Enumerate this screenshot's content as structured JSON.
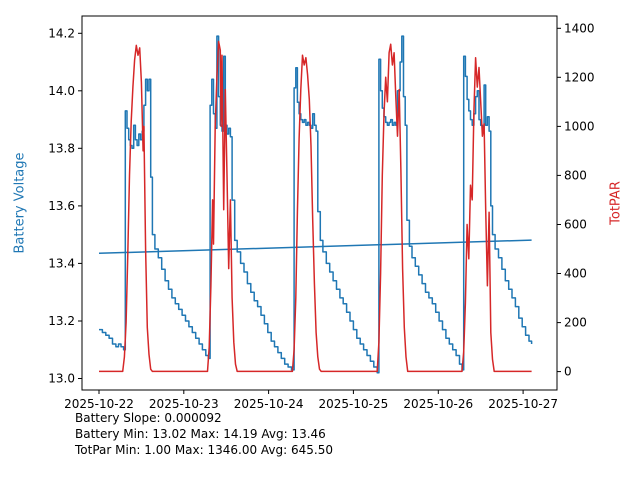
{
  "chart_data": {
    "type": "line",
    "title": "",
    "x_axis": {
      "label": "",
      "range": [
        -0.2,
        5.4
      ],
      "ticks": [
        0,
        1,
        2,
        3,
        4,
        5
      ],
      "tick_labels": [
        "2025-10-22",
        "2025-10-23",
        "2025-10-24",
        "2025-10-25",
        "2025-10-26",
        "2025-10-27"
      ]
    },
    "y_left": {
      "label": "Battery Voltage",
      "color": "#1f77b4",
      "range": [
        12.96,
        14.26
      ],
      "ticks": [
        13.0,
        13.2,
        13.4,
        13.6,
        13.8,
        14.0,
        14.2
      ],
      "tick_labels": [
        "13.0",
        "13.2",
        "13.4",
        "13.6",
        "13.8",
        "14.0",
        "14.2"
      ]
    },
    "y_right": {
      "label": "TotPAR",
      "color": "#d62728",
      "range": [
        -75,
        1450
      ],
      "ticks": [
        0,
        200,
        400,
        600,
        800,
        1000,
        1200,
        1400
      ],
      "tick_labels": [
        "0",
        "200",
        "400",
        "600",
        "800",
        "1000",
        "1200",
        "1400"
      ]
    },
    "grid": false,
    "legend": "none",
    "series": [
      {
        "name": "battery-voltage",
        "axis": "left",
        "color": "#1f77b4",
        "width": 1.5,
        "step": true,
        "points": [
          [
            0.0,
            13.17
          ],
          [
            0.04,
            13.16
          ],
          [
            0.08,
            13.15
          ],
          [
            0.12,
            13.14
          ],
          [
            0.16,
            13.12
          ],
          [
            0.2,
            13.11
          ],
          [
            0.23,
            13.12
          ],
          [
            0.26,
            13.11
          ],
          [
            0.29,
            13.1
          ],
          [
            0.31,
            13.93
          ],
          [
            0.33,
            13.87
          ],
          [
            0.35,
            13.83
          ],
          [
            0.37,
            13.81
          ],
          [
            0.39,
            13.8
          ],
          [
            0.41,
            13.88
          ],
          [
            0.43,
            13.83
          ],
          [
            0.45,
            13.81
          ],
          [
            0.47,
            13.85
          ],
          [
            0.49,
            13.83
          ],
          [
            0.51,
            13.86
          ],
          [
            0.53,
            13.95
          ],
          [
            0.55,
            14.04
          ],
          [
            0.57,
            14.0
          ],
          [
            0.59,
            14.04
          ],
          [
            0.61,
            13.7
          ],
          [
            0.63,
            13.5
          ],
          [
            0.66,
            13.45
          ],
          [
            0.7,
            13.42
          ],
          [
            0.74,
            13.38
          ],
          [
            0.78,
            13.34
          ],
          [
            0.82,
            13.31
          ],
          [
            0.86,
            13.28
          ],
          [
            0.9,
            13.26
          ],
          [
            0.94,
            13.24
          ],
          [
            0.98,
            13.22
          ],
          [
            1.02,
            13.2
          ],
          [
            1.06,
            13.18
          ],
          [
            1.1,
            13.16
          ],
          [
            1.14,
            13.14
          ],
          [
            1.18,
            13.12
          ],
          [
            1.22,
            13.1
          ],
          [
            1.26,
            13.08
          ],
          [
            1.29,
            13.07
          ],
          [
            1.31,
            13.95
          ],
          [
            1.33,
            14.04
          ],
          [
            1.35,
            13.92
          ],
          [
            1.37,
            13.87
          ],
          [
            1.39,
            14.19
          ],
          [
            1.41,
            13.98
          ],
          [
            1.43,
            13.88
          ],
          [
            1.45,
            13.86
          ],
          [
            1.47,
            14.12
          ],
          [
            1.49,
            13.88
          ],
          [
            1.51,
            13.85
          ],
          [
            1.53,
            13.87
          ],
          [
            1.55,
            13.84
          ],
          [
            1.57,
            13.62
          ],
          [
            1.6,
            13.48
          ],
          [
            1.63,
            13.44
          ],
          [
            1.67,
            13.4
          ],
          [
            1.71,
            13.37
          ],
          [
            1.75,
            13.33
          ],
          [
            1.79,
            13.3
          ],
          [
            1.83,
            13.27
          ],
          [
            1.87,
            13.25
          ],
          [
            1.91,
            13.22
          ],
          [
            1.95,
            13.19
          ],
          [
            1.99,
            13.16
          ],
          [
            2.03,
            13.13
          ],
          [
            2.07,
            13.11
          ],
          [
            2.11,
            13.09
          ],
          [
            2.15,
            13.07
          ],
          [
            2.19,
            13.05
          ],
          [
            2.23,
            13.04
          ],
          [
            2.27,
            13.03
          ],
          [
            2.3,
            14.01
          ],
          [
            2.32,
            14.08
          ],
          [
            2.34,
            13.96
          ],
          [
            2.36,
            13.92
          ],
          [
            2.38,
            13.9
          ],
          [
            2.4,
            13.89
          ],
          [
            2.42,
            13.9
          ],
          [
            2.44,
            13.88
          ],
          [
            2.46,
            13.89
          ],
          [
            2.48,
            13.88
          ],
          [
            2.5,
            13.87
          ],
          [
            2.52,
            13.92
          ],
          [
            2.54,
            13.88
          ],
          [
            2.56,
            13.86
          ],
          [
            2.58,
            13.58
          ],
          [
            2.61,
            13.48
          ],
          [
            2.64,
            13.44
          ],
          [
            2.68,
            13.4
          ],
          [
            2.72,
            13.37
          ],
          [
            2.76,
            13.34
          ],
          [
            2.8,
            13.31
          ],
          [
            2.84,
            13.28
          ],
          [
            2.88,
            13.26
          ],
          [
            2.92,
            13.23
          ],
          [
            2.96,
            13.2
          ],
          [
            3.0,
            13.17
          ],
          [
            3.04,
            13.14
          ],
          [
            3.08,
            13.12
          ],
          [
            3.12,
            13.1
          ],
          [
            3.16,
            13.08
          ],
          [
            3.2,
            13.06
          ],
          [
            3.24,
            13.04
          ],
          [
            3.28,
            13.02
          ],
          [
            3.3,
            14.11
          ],
          [
            3.32,
            14.0
          ],
          [
            3.34,
            13.94
          ],
          [
            3.36,
            13.91
          ],
          [
            3.38,
            13.89
          ],
          [
            3.4,
            13.88
          ],
          [
            3.42,
            13.89
          ],
          [
            3.44,
            13.9
          ],
          [
            3.46,
            13.88
          ],
          [
            3.48,
            13.89
          ],
          [
            3.5,
            13.88
          ],
          [
            3.52,
            14.0
          ],
          [
            3.55,
            14.1
          ],
          [
            3.57,
            14.19
          ],
          [
            3.59,
            13.98
          ],
          [
            3.61,
            13.88
          ],
          [
            3.63,
            13.55
          ],
          [
            3.66,
            13.46
          ],
          [
            3.69,
            13.42
          ],
          [
            3.73,
            13.39
          ],
          [
            3.77,
            13.36
          ],
          [
            3.81,
            13.33
          ],
          [
            3.85,
            13.3
          ],
          [
            3.89,
            13.28
          ],
          [
            3.93,
            13.26
          ],
          [
            3.97,
            13.23
          ],
          [
            4.01,
            13.2
          ],
          [
            4.05,
            13.17
          ],
          [
            4.09,
            13.14
          ],
          [
            4.13,
            13.12
          ],
          [
            4.17,
            13.1
          ],
          [
            4.21,
            13.08
          ],
          [
            4.25,
            13.05
          ],
          [
            4.28,
            13.03
          ],
          [
            4.3,
            14.12
          ],
          [
            4.32,
            14.05
          ],
          [
            4.34,
            13.97
          ],
          [
            4.36,
            13.93
          ],
          [
            4.38,
            13.9
          ],
          [
            4.4,
            13.88
          ],
          [
            4.42,
            13.92
          ],
          [
            4.44,
            13.98
          ],
          [
            4.46,
            14.0
          ],
          [
            4.48,
            13.9
          ],
          [
            4.5,
            13.88
          ],
          [
            4.52,
            13.86
          ],
          [
            4.54,
            14.02
          ],
          [
            4.56,
            13.88
          ],
          [
            4.58,
            13.91
          ],
          [
            4.6,
            13.86
          ],
          [
            4.62,
            13.6
          ],
          [
            4.64,
            13.5
          ],
          [
            4.67,
            13.45
          ],
          [
            4.71,
            13.42
          ],
          [
            4.75,
            13.38
          ],
          [
            4.79,
            13.34
          ],
          [
            4.83,
            13.31
          ],
          [
            4.87,
            13.28
          ],
          [
            4.91,
            13.25
          ],
          [
            4.95,
            13.21
          ],
          [
            4.99,
            13.18
          ],
          [
            5.03,
            13.15
          ],
          [
            5.07,
            13.13
          ],
          [
            5.1,
            13.12
          ]
        ]
      },
      {
        "name": "battery-trend",
        "axis": "left",
        "color": "#1f77b4",
        "width": 1.5,
        "step": false,
        "points": [
          [
            0.0,
            13.435
          ],
          [
            5.1,
            13.481
          ]
        ]
      },
      {
        "name": "totpar",
        "axis": "right",
        "color": "#d62728",
        "width": 1.5,
        "step": false,
        "points": [
          [
            0.0,
            1
          ],
          [
            0.28,
            1
          ],
          [
            0.3,
            60
          ],
          [
            0.32,
            200
          ],
          [
            0.34,
            480
          ],
          [
            0.36,
            800
          ],
          [
            0.38,
            1020
          ],
          [
            0.4,
            1160
          ],
          [
            0.42,
            1270
          ],
          [
            0.44,
            1330
          ],
          [
            0.46,
            1290
          ],
          [
            0.48,
            1320
          ],
          [
            0.5,
            1180
          ],
          [
            0.52,
            900
          ],
          [
            0.53,
            1000
          ],
          [
            0.55,
            500
          ],
          [
            0.57,
            180
          ],
          [
            0.59,
            70
          ],
          [
            0.61,
            10
          ],
          [
            0.63,
            1
          ],
          [
            1.28,
            1
          ],
          [
            1.3,
            100
          ],
          [
            1.32,
            350
          ],
          [
            1.34,
            700
          ],
          [
            1.35,
            520
          ],
          [
            1.37,
            1000
          ],
          [
            1.39,
            1200
          ],
          [
            1.41,
            1346
          ],
          [
            1.43,
            1310
          ],
          [
            1.44,
            1000
          ],
          [
            1.45,
            1290
          ],
          [
            1.47,
            660
          ],
          [
            1.49,
            1150
          ],
          [
            1.51,
            800
          ],
          [
            1.53,
            420
          ],
          [
            1.55,
            700
          ],
          [
            1.57,
            300
          ],
          [
            1.59,
            120
          ],
          [
            1.61,
            30
          ],
          [
            1.63,
            1
          ],
          [
            2.28,
            1
          ],
          [
            2.3,
            90
          ],
          [
            2.32,
            300
          ],
          [
            2.34,
            650
          ],
          [
            2.36,
            950
          ],
          [
            2.38,
            1150
          ],
          [
            2.4,
            1290
          ],
          [
            2.42,
            1250
          ],
          [
            2.44,
            1280
          ],
          [
            2.46,
            1210
          ],
          [
            2.48,
            1110
          ],
          [
            2.5,
            920
          ],
          [
            2.52,
            620
          ],
          [
            2.54,
            360
          ],
          [
            2.56,
            160
          ],
          [
            2.58,
            60
          ],
          [
            2.6,
            10
          ],
          [
            2.62,
            1
          ],
          [
            3.28,
            1
          ],
          [
            3.3,
            120
          ],
          [
            3.32,
            400
          ],
          [
            3.34,
            800
          ],
          [
            3.36,
            1050
          ],
          [
            3.38,
            1200
          ],
          [
            3.4,
            1100
          ],
          [
            3.42,
            1300
          ],
          [
            3.44,
            1335
          ],
          [
            3.46,
            1250
          ],
          [
            3.48,
            1300
          ],
          [
            3.5,
            1120
          ],
          [
            3.52,
            960
          ],
          [
            3.54,
            1150
          ],
          [
            3.56,
            820
          ],
          [
            3.58,
            420
          ],
          [
            3.6,
            180
          ],
          [
            3.62,
            60
          ],
          [
            3.64,
            1
          ],
          [
            4.28,
            1
          ],
          [
            4.3,
            80
          ],
          [
            4.32,
            280
          ],
          [
            4.34,
            600
          ],
          [
            4.36,
            460
          ],
          [
            4.38,
            760
          ],
          [
            4.4,
            700
          ],
          [
            4.42,
            1060
          ],
          [
            4.44,
            1280
          ],
          [
            4.46,
            1160
          ],
          [
            4.48,
            1240
          ],
          [
            4.5,
            1100
          ],
          [
            4.52,
            960
          ],
          [
            4.54,
            1010
          ],
          [
            4.56,
            660
          ],
          [
            4.58,
            350
          ],
          [
            4.6,
            650
          ],
          [
            4.62,
            160
          ],
          [
            4.64,
            50
          ],
          [
            4.66,
            1
          ],
          [
            5.1,
            1
          ]
        ]
      }
    ],
    "annotations": [
      "Battery Slope: 0.000092",
      "Battery Min: 13.02 Max: 14.19 Avg: 13.46",
      "TotPar Min: 1.00 Max: 1346.00 Avg: 645.50"
    ],
    "stats": {
      "battery_slope": 9.2e-05,
      "battery_min": 13.02,
      "battery_max": 14.19,
      "battery_avg": 13.46,
      "totpar_min": 1.0,
      "totpar_max": 1346.0,
      "totpar_avg": 645.5
    }
  }
}
